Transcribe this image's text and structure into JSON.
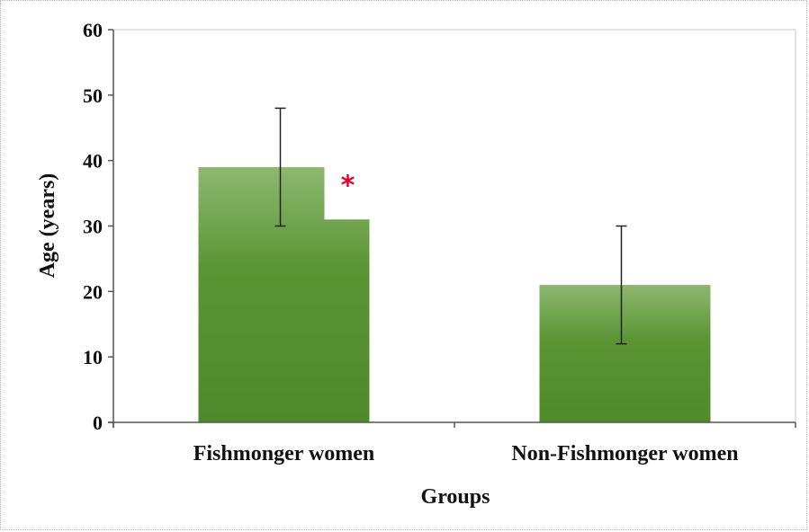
{
  "chart_data": {
    "type": "bar",
    "title": "",
    "xlabel": "Groups",
    "ylabel": "Age (years)",
    "ylim": [
      0,
      60
    ],
    "yticks": [
      0,
      10,
      20,
      30,
      40,
      50,
      60
    ],
    "grid": false,
    "legend": "none",
    "categories": [
      "Fishmonger women",
      "Non-Fishmonger women"
    ],
    "values": [
      39,
      21
    ],
    "error_bars": [
      {
        "low": 30,
        "high": 48
      },
      {
        "low": 12,
        "high": 30
      }
    ],
    "annotations": [
      {
        "text": "*",
        "category": "Fishmonger women",
        "y": 37,
        "color": "#e8002a"
      }
    ],
    "colors": {
      "bar_top": "#8db870",
      "bar_bottom": "#4f8a2b",
      "axis": "#555555",
      "error_bar": "#222222",
      "annotation": "#e8002a"
    }
  }
}
